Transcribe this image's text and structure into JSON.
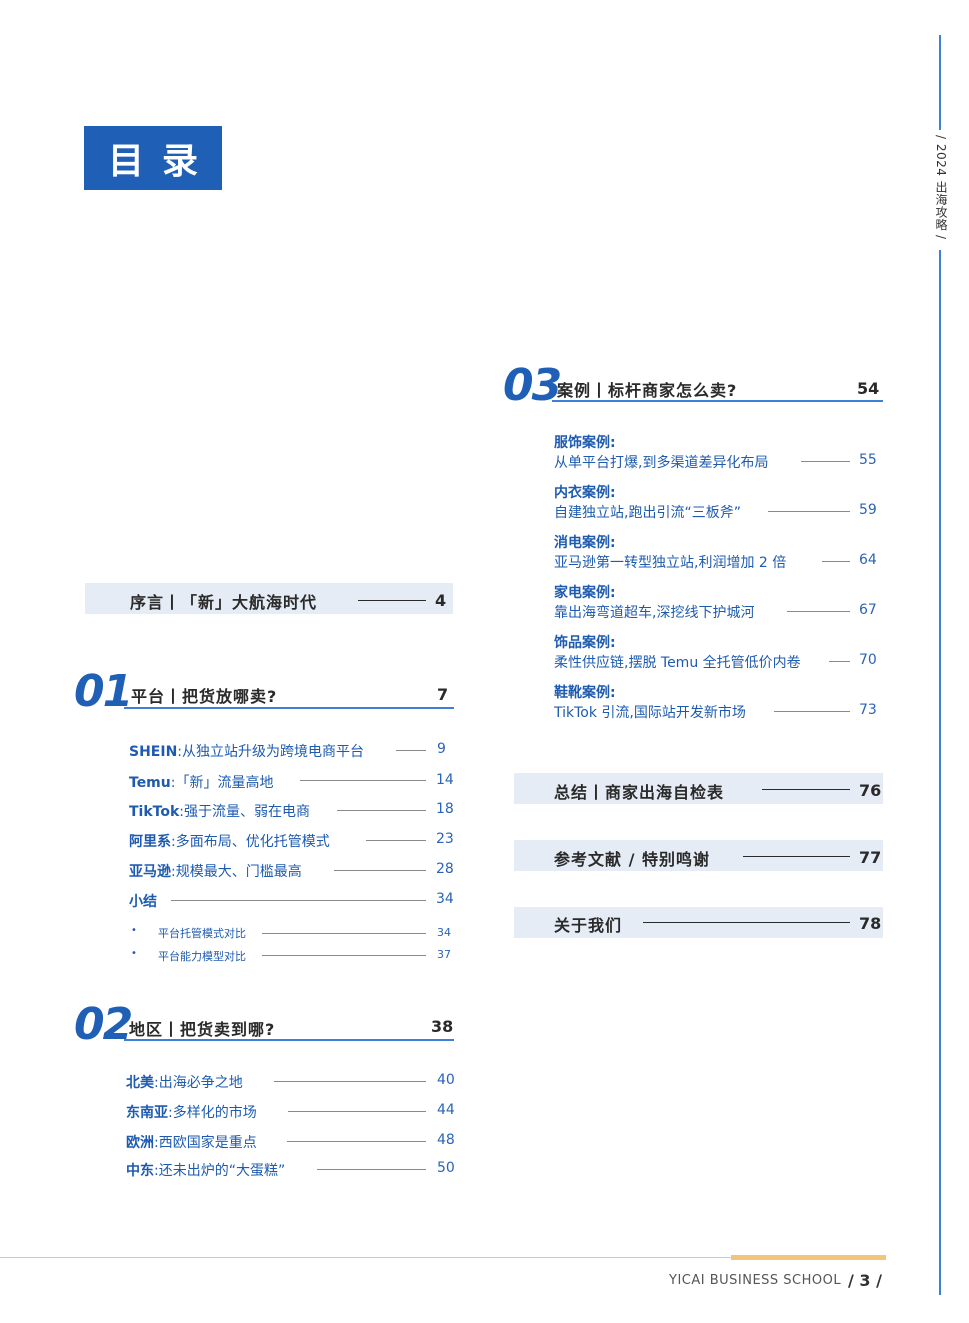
{
  "side_tag": "/ 2024 出海攻略 /",
  "title": "目录",
  "preface": {
    "label": "序言丨「新」大航海时代",
    "page": "4"
  },
  "sections": [
    {
      "num": "01",
      "title": "平台丨把货放哪卖?",
      "page": "7",
      "entries": [
        {
          "head": "SHEIN",
          "text": ":从独立站升级为跨境电商平台",
          "page": "9"
        },
        {
          "head": "Temu",
          "text": ":「新」流量高地",
          "page": "14"
        },
        {
          "head": "TikTok",
          "text": ":强于流量、弱在电商",
          "page": "18"
        },
        {
          "head": "阿里系",
          "text": ":多面布局、优化托管模式",
          "page": "23"
        },
        {
          "head": "亚马逊",
          "text": ":规模最大、门槛最高",
          "page": "28"
        },
        {
          "head": "小结",
          "text": "",
          "page": "34"
        }
      ],
      "subentries": [
        {
          "text": "平台托管模式对比",
          "page": "34"
        },
        {
          "text": "平台能力模型对比",
          "page": "37"
        }
      ]
    },
    {
      "num": "02",
      "title": "地区丨把货卖到哪?",
      "page": "38",
      "entries": [
        {
          "head": "北美",
          "text": ":出海必争之地",
          "page": "40"
        },
        {
          "head": "东南亚",
          "text": ":多样化的市场",
          "page": "44"
        },
        {
          "head": "欧洲",
          "text": ":西欧国家是重点",
          "page": "48"
        },
        {
          "head": "中东",
          "text": ":还未出炉的“大蛋糕”",
          "page": "50"
        }
      ]
    },
    {
      "num": "03",
      "title": "案例丨标杆商家怎么卖?",
      "page": "54",
      "cases": [
        {
          "head": "服饰案例:",
          "text": "从单平台打爆,到多渠道差异化布局",
          "page": "55"
        },
        {
          "head": "内衣案例:",
          "text": "自建独立站,跑出引流“三板斧”",
          "page": "59"
        },
        {
          "head": "消电案例:",
          "text": "亚马逊第一转型独立站,利润增加 2 倍",
          "page": "64"
        },
        {
          "head": "家电案例:",
          "text": "靠出海弯道超车,深挖线下护城河",
          "page": "67"
        },
        {
          "head": "饰品案例:",
          "text": "柔性供应链,摆脱 Temu 全托管低价内卷",
          "page": "70"
        },
        {
          "head": "鞋靴案例:",
          "text": "TikTok 引流,国际站开发新市场",
          "page": "73"
        }
      ]
    }
  ],
  "extras": [
    {
      "label": "总结丨商家出海自检表",
      "page": "76"
    },
    {
      "label": "参考文献 / 特别鸣谢",
      "page": "77"
    },
    {
      "label": "关于我们",
      "page": "78"
    }
  ],
  "footer": {
    "brand": "YICAI BUSINESS SCHOOL",
    "page": "/ 3 /"
  }
}
